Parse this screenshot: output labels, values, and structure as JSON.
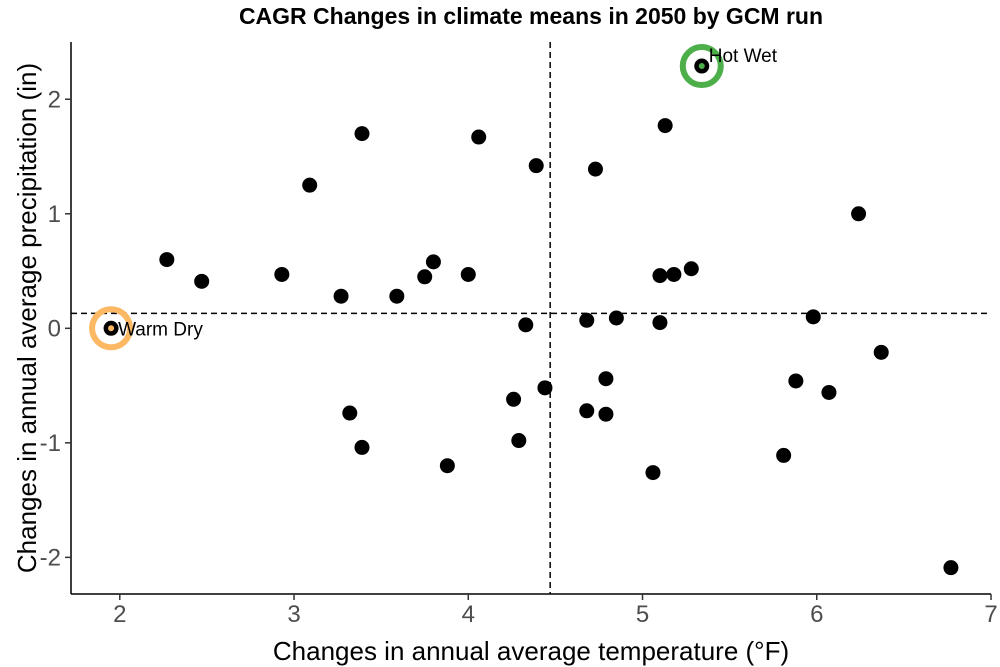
{
  "chart_data": {
    "type": "scatter",
    "title": "CAGR Changes in climate means in 2050 by GCM run",
    "xlabel": "Changes in annual average temperature (°F)",
    "ylabel": "Changes in annual average precipitation (in)",
    "xlim": [
      1.72,
      7.0
    ],
    "ylim": [
      -2.32,
      2.5
    ],
    "x_ticks": [
      2,
      3,
      4,
      5,
      6,
      7
    ],
    "y_ticks": [
      -2,
      -1,
      0,
      1,
      2
    ],
    "x_tick_labels": [
      "2",
      "3",
      "4",
      "5",
      "6",
      "7"
    ],
    "y_tick_labels": [
      "-2",
      "-1",
      "0",
      "1",
      "2"
    ],
    "grid": false,
    "reference_lines": {
      "vertical_x": 4.47,
      "horizontal_y": 0.13,
      "style": "dashed"
    },
    "points": [
      {
        "x": 2.27,
        "y": 0.6
      },
      {
        "x": 2.47,
        "y": 0.41
      },
      {
        "x": 2.93,
        "y": 0.47
      },
      {
        "x": 3.09,
        "y": 1.25
      },
      {
        "x": 3.27,
        "y": 0.28
      },
      {
        "x": 3.32,
        "y": -0.74
      },
      {
        "x": 3.39,
        "y": 1.7
      },
      {
        "x": 3.39,
        "y": -1.04
      },
      {
        "x": 3.59,
        "y": 0.28
      },
      {
        "x": 3.75,
        "y": 0.45
      },
      {
        "x": 3.8,
        "y": 0.58
      },
      {
        "x": 3.88,
        "y": -1.2
      },
      {
        "x": 4.0,
        "y": 0.47
      },
      {
        "x": 4.06,
        "y": 1.67
      },
      {
        "x": 4.26,
        "y": -0.62
      },
      {
        "x": 4.29,
        "y": -0.98
      },
      {
        "x": 4.33,
        "y": 0.03
      },
      {
        "x": 4.39,
        "y": 1.42
      },
      {
        "x": 4.44,
        "y": -0.52
      },
      {
        "x": 4.68,
        "y": -0.72
      },
      {
        "x": 4.68,
        "y": 0.07
      },
      {
        "x": 4.73,
        "y": 1.39
      },
      {
        "x": 4.79,
        "y": -0.44
      },
      {
        "x": 4.79,
        "y": -0.75
      },
      {
        "x": 4.85,
        "y": 0.09
      },
      {
        "x": 5.06,
        "y": -1.26
      },
      {
        "x": 5.1,
        "y": 0.05
      },
      {
        "x": 5.1,
        "y": 0.46
      },
      {
        "x": 5.13,
        "y": 1.77
      },
      {
        "x": 5.18,
        "y": 0.47
      },
      {
        "x": 5.28,
        "y": 0.52
      },
      {
        "x": 5.34,
        "y": 2.29
      },
      {
        "x": 5.81,
        "y": -1.11
      },
      {
        "x": 5.88,
        "y": -0.46
      },
      {
        "x": 5.98,
        "y": 0.1
      },
      {
        "x": 6.07,
        "y": -0.56
      },
      {
        "x": 6.24,
        "y": 1.0
      },
      {
        "x": 6.37,
        "y": -0.21
      },
      {
        "x": 6.77,
        "y": -2.09
      },
      {
        "x": 1.95,
        "y": 0.0
      }
    ],
    "annotations": [
      {
        "label": "Hot Wet",
        "x": 5.34,
        "y": 2.29,
        "color": "#4daf4a",
        "fill": "#4daf4a"
      },
      {
        "label": "Warm Dry",
        "x": 1.95,
        "y": 0.0,
        "color": "#fdb863",
        "fill": "#fdb863"
      }
    ],
    "point_color": "#000000"
  }
}
